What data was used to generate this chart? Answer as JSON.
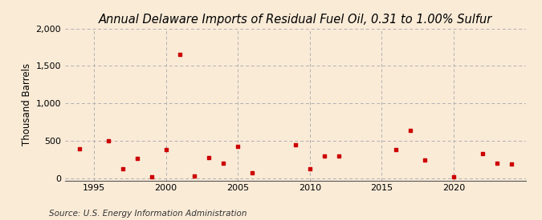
{
  "title": "Annual Delaware Imports of Residual Fuel Oil, 0.31 to 1.00% Sulfur",
  "ylabel": "Thousand Barrels",
  "source": "Source: U.S. Energy Information Administration",
  "background_color": "#faebd7",
  "plot_background_color": "#faebd7",
  "marker_color": "#cc0000",
  "grid_color": "#b0b0b0",
  "years": [
    1994,
    1996,
    1997,
    1998,
    1999,
    2000,
    2001,
    2002,
    2003,
    2004,
    2005,
    2006,
    2009,
    2010,
    2011,
    2012,
    2016,
    2017,
    2018,
    2020,
    2022,
    2023,
    2024
  ],
  "values": [
    390,
    500,
    130,
    260,
    20,
    380,
    1650,
    25,
    270,
    200,
    420,
    75,
    450,
    130,
    300,
    300,
    380,
    640,
    240,
    20,
    330,
    200,
    190
  ],
  "xlim": [
    1993,
    2025
  ],
  "ylim": [
    -30,
    2000
  ],
  "yticks": [
    0,
    500,
    1000,
    1500,
    2000
  ],
  "xticks": [
    1995,
    2000,
    2005,
    2010,
    2015,
    2020
  ],
  "title_fontsize": 10.5,
  "label_fontsize": 8.5,
  "tick_fontsize": 8,
  "source_fontsize": 7.5
}
